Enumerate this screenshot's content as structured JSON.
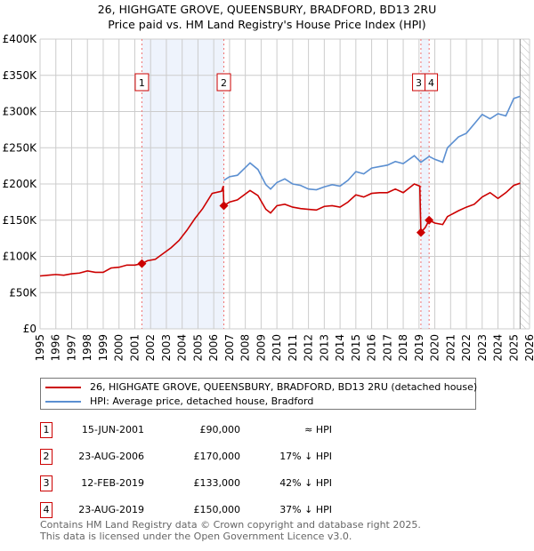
{
  "chart_data": {
    "type": "line",
    "title": "26, HIGHGATE GROVE, QUEENSBURY, BRADFORD, BD13 2RU",
    "subtitle": "Price paid vs. HM Land Registry's House Price Index (HPI)",
    "xlim": [
      1995,
      2026
    ],
    "ylim": [
      0,
      400000
    ],
    "x_ticks": [
      "1995",
      "1996",
      "1997",
      "1998",
      "1999",
      "2000",
      "2001",
      "2002",
      "2003",
      "2004",
      "2005",
      "2006",
      "2007",
      "2008",
      "2009",
      "2010",
      "2011",
      "2012",
      "2013",
      "2014",
      "2015",
      "2016",
      "2017",
      "2018",
      "2019",
      "2020",
      "2021",
      "2022",
      "2023",
      "2024",
      "2025",
      "2026"
    ],
    "y_ticks": [
      {
        "v": 0,
        "label": "£0"
      },
      {
        "v": 50000,
        "label": "£50K"
      },
      {
        "v": 100000,
        "label": "£100K"
      },
      {
        "v": 150000,
        "label": "£150K"
      },
      {
        "v": 200000,
        "label": "£200K"
      },
      {
        "v": 250000,
        "label": "£250K"
      },
      {
        "v": 300000,
        "label": "£300K"
      },
      {
        "v": 350000,
        "label": "£350K"
      },
      {
        "v": 400000,
        "label": "£400K"
      }
    ],
    "grid": true,
    "shaded_periods": [
      [
        2001.45,
        2006.64
      ],
      [
        2019.12,
        2019.64
      ]
    ],
    "data_end": 2025.4,
    "series": [
      {
        "name": "26, HIGHGATE GROVE, QUEENSBURY, BRADFORD, BD13 2RU (detached house)",
        "color": "#cc0000",
        "x": [
          1995,
          1995.5,
          1996,
          1996.5,
          1997,
          1997.5,
          1998,
          1998.5,
          1999,
          1999.5,
          2000,
          2000.5,
          2001,
          2001.45,
          2001.8,
          2002.3,
          2002.8,
          2003.3,
          2003.8,
          2004.3,
          2004.8,
          2005.3,
          2005.9,
          2006.5,
          2006.6,
          2006.64,
          2007,
          2007.5,
          2008.3,
          2008.8,
          2009.3,
          2009.6,
          2010,
          2010.5,
          2011,
          2011.5,
          2012,
          2012.5,
          2013,
          2013.5,
          2014,
          2014.5,
          2015,
          2015.5,
          2016,
          2016.5,
          2017,
          2017.5,
          2018,
          2018.7,
          2019.05,
          2019.12,
          2019.4,
          2019.64,
          2020,
          2020.5,
          2020.8,
          2021.5,
          2022,
          2022.5,
          2023,
          2023.5,
          2024,
          2024.5,
          2025,
          2025.4
        ],
        "y": [
          73000,
          74000,
          75000,
          74000,
          76000,
          77000,
          80000,
          78000,
          78000,
          84000,
          85000,
          88000,
          88000,
          90000,
          94000,
          96000,
          104000,
          112000,
          122000,
          136000,
          152000,
          166000,
          187000,
          190000,
          197000,
          170000,
          175000,
          178000,
          191000,
          184000,
          165000,
          160000,
          170000,
          172000,
          168000,
          166000,
          165000,
          164000,
          169000,
          170000,
          168000,
          175000,
          185000,
          182000,
          187000,
          188000,
          188000,
          193000,
          188000,
          200000,
          197000,
          133000,
          140000,
          150000,
          146000,
          144000,
          155000,
          163000,
          168000,
          172000,
          182000,
          188000,
          180000,
          188000,
          198000,
          201000
        ]
      },
      {
        "name": "HPI: Average price, detached house, Bradford",
        "color": "#5b8fd1",
        "x": [
          2006.64,
          2007,
          2007.5,
          2008.3,
          2008.8,
          2009.3,
          2009.6,
          2010,
          2010.5,
          2011,
          2011.5,
          2012,
          2012.5,
          2013,
          2013.5,
          2014,
          2014.5,
          2015,
          2015.5,
          2016,
          2016.5,
          2017,
          2017.5,
          2018,
          2018.7,
          2019.12,
          2019.64,
          2020,
          2020.5,
          2020.8,
          2021.5,
          2022,
          2022.5,
          2023,
          2023.5,
          2024,
          2024.5,
          2025,
          2025.4
        ],
        "y": [
          205000,
          210000,
          212000,
          229000,
          220000,
          199000,
          193000,
          202000,
          207000,
          200000,
          198000,
          193000,
          192000,
          196000,
          199000,
          197000,
          205000,
          217000,
          214000,
          222000,
          224000,
          226000,
          231000,
          228000,
          239000,
          230000,
          238000,
          234000,
          230000,
          250000,
          265000,
          270000,
          283000,
          296000,
          290000,
          297000,
          294000,
          318000,
          321000
        ]
      }
    ],
    "sales": [
      {
        "label": "1",
        "x": 2001.45,
        "y": 90000,
        "date": "15-JUN-2001",
        "price": "£90,000",
        "hpi": "≈ HPI"
      },
      {
        "label": "2",
        "x": 2006.64,
        "y": 170000,
        "date": "23-AUG-2006",
        "price": "£170,000",
        "hpi": "17% ↓ HPI"
      },
      {
        "label": "3",
        "x": 2019.12,
        "y": 133000,
        "date": "12-FEB-2019",
        "price": "£133,000",
        "hpi": "42% ↓ HPI"
      },
      {
        "label": "4",
        "x": 2019.64,
        "y": 150000,
        "date": "23-AUG-2019",
        "price": "£150,000",
        "hpi": "37% ↓ HPI"
      }
    ]
  },
  "footer": {
    "line1": "Contains HM Land Registry data © Crown copyright and database right 2025.",
    "line2": "This data is licensed under the Open Government Licence v3.0."
  }
}
